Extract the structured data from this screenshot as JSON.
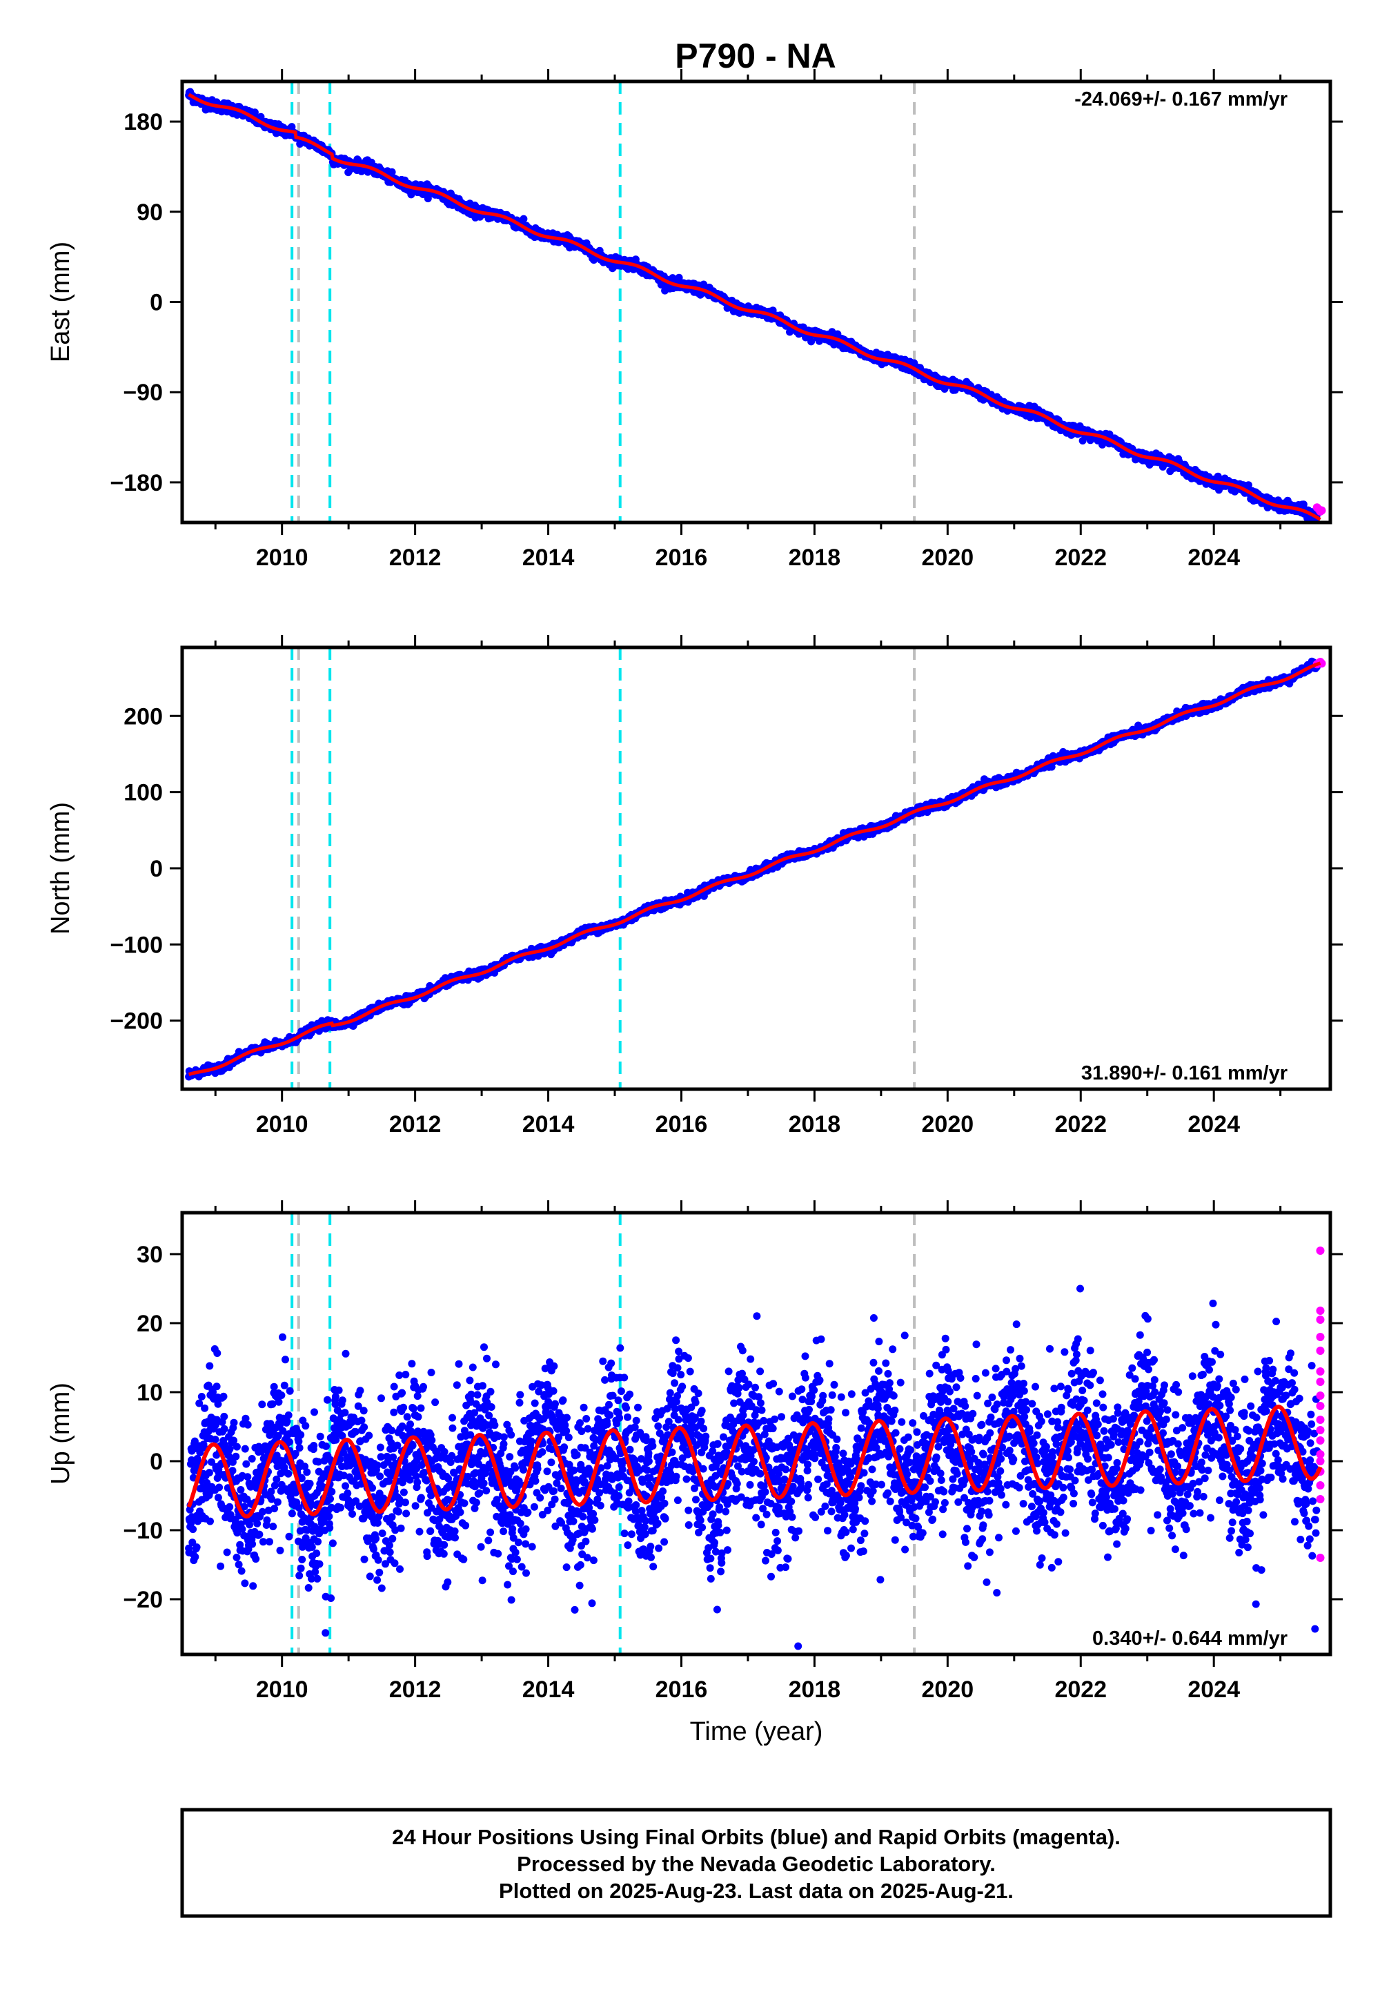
{
  "title": "P790 - NA",
  "chart_data": [
    {
      "type": "scatter",
      "name": "east",
      "ylabel": "East (mm)",
      "xlim": [
        2008.5,
        2025.75
      ],
      "ylim": [
        -220,
        220
      ],
      "yticks": [
        180,
        90,
        0,
        -90,
        -180
      ],
      "ytick_labels": [
        "180",
        "90",
        "0",
        "−90",
        "−180"
      ],
      "xticks": [
        2010,
        2012,
        2014,
        2016,
        2018,
        2020,
        2022,
        2024
      ],
      "xtick_labels": [
        "2010",
        "2012",
        "2014",
        "2016",
        "2018",
        "2020",
        "2022",
        "2024"
      ],
      "rate_text": "-24.069+/- 0.167 mm/yr",
      "rate_position": "top-right",
      "trend": {
        "x0": 2008.6,
        "y0": 207,
        "x1": 2025.6,
        "y1": -208
      },
      "steps": [
        {
          "x": 2010.2,
          "dy": -5
        },
        {
          "x": 2010.75,
          "dy": -4
        }
      ],
      "seasonal": {
        "amp": 2.5,
        "phase": 0.1
      },
      "noise": 2.5,
      "rapid_points": [
        [
          2025.55,
          -205
        ],
        [
          2025.58,
          -207
        ],
        [
          2025.6,
          -209
        ],
        [
          2025.62,
          -208
        ]
      ]
    },
    {
      "type": "scatter",
      "name": "north",
      "ylabel": "North (mm)",
      "xlim": [
        2008.5,
        2025.75
      ],
      "ylim": [
        -290,
        290
      ],
      "yticks": [
        200,
        100,
        0,
        -100,
        -200
      ],
      "ytick_labels": [
        "200",
        "100",
        "0",
        "−100",
        "−200"
      ],
      "xticks": [
        2010,
        2012,
        2014,
        2016,
        2018,
        2020,
        2022,
        2024
      ],
      "xtick_labels": [
        "2010",
        "2012",
        "2014",
        "2016",
        "2018",
        "2020",
        "2022",
        "2024"
      ],
      "rate_text": "31.890+/- 0.161 mm/yr",
      "rate_position": "bottom-right",
      "trend": {
        "x0": 2008.6,
        "y0": -273,
        "x1": 2025.6,
        "y1": 270
      },
      "steps": [
        {
          "x": 2010.75,
          "dy": -3
        }
      ],
      "seasonal": {
        "amp": 2.5,
        "phase": 0.3
      },
      "noise": 2.5,
      "rapid_points": [
        [
          2025.55,
          268
        ],
        [
          2025.58,
          270
        ],
        [
          2025.6,
          271
        ],
        [
          2025.62,
          269
        ]
      ]
    },
    {
      "type": "scatter",
      "name": "up",
      "ylabel": "Up (mm)",
      "xlabel": "Time (year)",
      "xlim": [
        2008.5,
        2025.75
      ],
      "ylim": [
        -28,
        36
      ],
      "yticks": [
        30,
        20,
        10,
        0,
        -10,
        -20
      ],
      "ytick_labels": [
        "30",
        "20",
        "10",
        "0",
        "−10",
        "−20"
      ],
      "xticks": [
        2010,
        2012,
        2014,
        2016,
        2018,
        2020,
        2022,
        2024
      ],
      "xtick_labels": [
        "2010",
        "2012",
        "2014",
        "2016",
        "2018",
        "2020",
        "2022",
        "2024"
      ],
      "rate_text": "0.340+/- 0.644 mm/yr",
      "rate_position": "bottom-right",
      "trend": {
        "x0": 2008.6,
        "y0": -3,
        "x1": 2025.6,
        "y1": 2.8
      },
      "steps": [],
      "seasonal": {
        "amp": 5.3,
        "phase": 0.72
      },
      "noise": 5.5,
      "rapid_points": [
        [
          2025.6,
          30.5
        ],
        [
          2025.6,
          21.8
        ],
        [
          2025.6,
          20.5
        ],
        [
          2025.6,
          18.0
        ],
        [
          2025.6,
          16.0
        ],
        [
          2025.6,
          13.0
        ],
        [
          2025.6,
          11.5
        ],
        [
          2025.6,
          9.5
        ],
        [
          2025.6,
          8.0
        ],
        [
          2025.6,
          6.0
        ],
        [
          2025.6,
          4.5
        ],
        [
          2025.6,
          3.0
        ],
        [
          2025.6,
          1.0
        ],
        [
          2025.6,
          0.0
        ],
        [
          2025.6,
          -1.5
        ],
        [
          2025.6,
          -3.5
        ],
        [
          2025.6,
          -5.5
        ],
        [
          2025.6,
          -14.0
        ]
      ]
    }
  ],
  "events": [
    {
      "x": 2010.15,
      "color": "#00e5ee"
    },
    {
      "x": 2010.25,
      "color": "#bdbdbd"
    },
    {
      "x": 2010.72,
      "color": "#00e5ee"
    },
    {
      "x": 2015.08,
      "color": "#00e5ee"
    },
    {
      "x": 2019.5,
      "color": "#bdbdbd"
    }
  ],
  "colors": {
    "final": "#0000ff",
    "rapid": "#ff00ff",
    "model": "#ff0000"
  },
  "footer": {
    "line1": "24 Hour Positions Using Final Orbits (blue) and Rapid Orbits (magenta).",
    "line2": "Processed by the Nevada Geodetic Laboratory.",
    "line3": "Plotted on 2025-Aug-23. Last data on 2025-Aug-21."
  }
}
